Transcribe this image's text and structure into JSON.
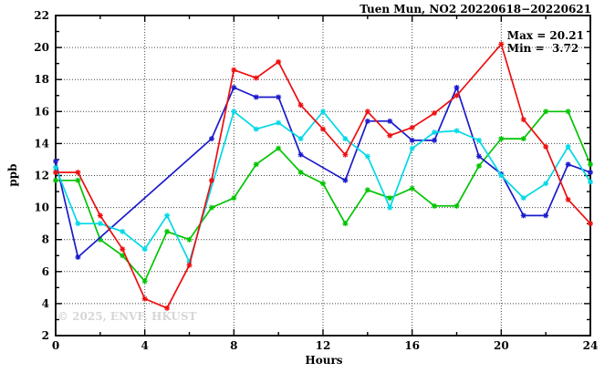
{
  "title": "Tuen Mun, NO2 20220618−20220621",
  "annotations": {
    "max_label": "Max = 20.21",
    "min_label": "Min =  3.72"
  },
  "watermark": "© 2025, ENVF, HKUST",
  "axes": {
    "xlabel": "Hours",
    "ylabel": "ppb"
  },
  "chart_data": {
    "type": "line",
    "title": "Tuen Mun, NO2 20220618−20220621",
    "xlabel": "Hours",
    "ylabel": "ppb",
    "xlim": [
      0,
      24
    ],
    "ylim": [
      2,
      22
    ],
    "x_ticks": [
      0,
      4,
      8,
      12,
      16,
      20,
      24
    ],
    "y_ticks": [
      2,
      4,
      6,
      8,
      10,
      12,
      14,
      16,
      18,
      20,
      22
    ],
    "x_minor_step": 2,
    "y_minor_step": 1,
    "grid": true,
    "legend_position": "none",
    "max": 20.21,
    "min": 3.72,
    "x": [
      0,
      1,
      2,
      3,
      4,
      5,
      6,
      7,
      8,
      9,
      10,
      11,
      12,
      13,
      14,
      15,
      16,
      17,
      18,
      19,
      20,
      21,
      22,
      23,
      24
    ],
    "series": [
      {
        "name": "green",
        "color": "#00c400",
        "values": [
          11.7,
          11.7,
          8.0,
          7.0,
          5.4,
          8.5,
          8.0,
          10.0,
          10.6,
          12.7,
          13.7,
          12.2,
          11.5,
          9.0,
          11.1,
          10.6,
          11.2,
          10.1,
          10.1,
          12.6,
          14.3,
          14.3,
          16.0,
          16.0,
          12.7
        ]
      },
      {
        "name": "blue",
        "color": "#1a1acc",
        "values": [
          12.9,
          6.9,
          null,
          null,
          null,
          null,
          null,
          14.3,
          17.5,
          16.9,
          16.9,
          13.3,
          null,
          11.7,
          15.4,
          15.4,
          14.2,
          14.2,
          17.5,
          13.2,
          12.1,
          9.5,
          9.5,
          12.7,
          12.2
        ]
      },
      {
        "name": "cyan",
        "color": "#00d9e6",
        "values": [
          12.5,
          9.0,
          9.0,
          8.5,
          7.4,
          9.5,
          6.6,
          null,
          16.0,
          14.9,
          15.3,
          14.3,
          16.0,
          14.3,
          13.2,
          10.0,
          13.7,
          14.7,
          14.8,
          14.2,
          12.0,
          10.6,
          11.5,
          13.8,
          11.6
        ]
      },
      {
        "name": "red",
        "color": "#ee0e0e",
        "values": [
          12.2,
          12.2,
          9.5,
          7.4,
          4.3,
          3.72,
          6.4,
          11.7,
          18.6,
          18.1,
          19.1,
          16.4,
          14.9,
          13.3,
          16.0,
          14.5,
          15.0,
          15.9,
          17.0,
          null,
          20.21,
          15.5,
          13.8,
          10.5,
          9.0
        ]
      }
    ]
  }
}
